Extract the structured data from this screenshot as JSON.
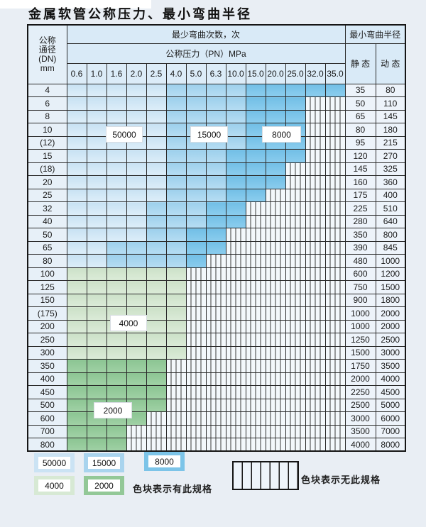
{
  "title": "金属软管公称压力、最小弯曲半径",
  "table": {
    "header": {
      "dn_label_lines": [
        "公称",
        "通径",
        "(DN)",
        "mm"
      ],
      "cycles_label": "最少弯曲次数，次",
      "pressure_label": "公称压力（PN）MPa",
      "pn_values": [
        "0.6",
        "1.0",
        "1.6",
        "2.0",
        "2.5",
        "4.0",
        "5.0",
        "6.3",
        "10.0",
        "15.0",
        "20.0",
        "25.0",
        "32.0",
        "35.0"
      ],
      "radius_label": "最小弯曲半径",
      "static_label": "静 态",
      "dynamic_label": "动 态"
    },
    "cell_legend": {
      "L": "blue zone 50000 cycles",
      "M": "blue zone 15000 cycles",
      "D": "blue zone 8000 cycles",
      "G": "green zone 4000 cycles",
      "E": "green zone 2000 cycles",
      "X": "hatched - no such specification"
    },
    "rows": [
      {
        "dn": "4",
        "cells": "LLLLLMMMMDDDDD",
        "static": "35",
        "dynamic": "80"
      },
      {
        "dn": "6",
        "cells": "LLLLLMMMMDDDXX",
        "static": "50",
        "dynamic": "110"
      },
      {
        "dn": "8",
        "cells": "LLLLLMMMMDDDXX",
        "static": "65",
        "dynamic": "145"
      },
      {
        "dn": "10",
        "cells": "LLLLLMMMMDDDXX",
        "static": "80",
        "dynamic": "180"
      },
      {
        "dn": "(12)",
        "cells": "LLLLLMMMMDDDXX",
        "static": "95",
        "dynamic": "215"
      },
      {
        "dn": "15",
        "cells": "LLLLLMMMDDDDXX",
        "static": "120",
        "dynamic": "270"
      },
      {
        "dn": "(18)",
        "cells": "LLLLLMMMDDDXXX",
        "static": "145",
        "dynamic": "325"
      },
      {
        "dn": "20",
        "cells": "LLLLLMMMDDDXXX",
        "static": "160",
        "dynamic": "360"
      },
      {
        "dn": "25",
        "cells": "LLLLLMMMDDXXXX",
        "static": "175",
        "dynamic": "400"
      },
      {
        "dn": "32",
        "cells": "LLLLMMMDDXXXXX",
        "static": "225",
        "dynamic": "510"
      },
      {
        "dn": "40",
        "cells": "LLLLMMMDDXXXXX",
        "static": "280",
        "dynamic": "640"
      },
      {
        "dn": "50",
        "cells": "LLLLMMDDXXXXXX",
        "static": "350",
        "dynamic": "800"
      },
      {
        "dn": "65",
        "cells": "LLMMMMDDXXXXXX",
        "static": "390",
        "dynamic": "845"
      },
      {
        "dn": "80",
        "cells": "LLMMMMDXXXXXXX",
        "static": "480",
        "dynamic": "1000"
      },
      {
        "dn": "100",
        "cells": "GGGGGGXXXXXXXX",
        "static": "600",
        "dynamic": "1200"
      },
      {
        "dn": "125",
        "cells": "GGGGGGXXXXXXXX",
        "static": "750",
        "dynamic": "1500"
      },
      {
        "dn": "150",
        "cells": "GGGGGGXXXXXXXX",
        "static": "900",
        "dynamic": "1800"
      },
      {
        "dn": "(175)",
        "cells": "GGGGGGXXXXXXXX",
        "static": "1000",
        "dynamic": "2000"
      },
      {
        "dn": "200",
        "cells": "GGGGGGXXXXXXXX",
        "static": "1000",
        "dynamic": "2000"
      },
      {
        "dn": "250",
        "cells": "GGGGGGXXXXXXXX",
        "static": "1250",
        "dynamic": "2500"
      },
      {
        "dn": "300",
        "cells": "GGGGGGXXXXXXXX",
        "static": "1500",
        "dynamic": "3000"
      },
      {
        "dn": "350",
        "cells": "EEEEEXXXXXXXXX",
        "static": "1750",
        "dynamic": "3500"
      },
      {
        "dn": "400",
        "cells": "EEEEEXXXXXXXXX",
        "static": "2000",
        "dynamic": "4000"
      },
      {
        "dn": "450",
        "cells": "EEEEEXXXXXXXXX",
        "static": "2250",
        "dynamic": "4500"
      },
      {
        "dn": "500",
        "cells": "EEEEEXXXXXXXXX",
        "static": "2500",
        "dynamic": "5000"
      },
      {
        "dn": "600",
        "cells": "EEEEXXXXXXXXXX",
        "static": "3000",
        "dynamic": "6000"
      },
      {
        "dn": "700",
        "cells": "EEEXXXXXXXXXXX",
        "static": "3500",
        "dynamic": "7000"
      },
      {
        "dn": "800",
        "cells": "EEEXXXXXXXXXXX",
        "static": "4000",
        "dynamic": "8000"
      }
    ]
  },
  "overlays": {
    "b50000": "50000",
    "b15000": "15000",
    "b8000": "8000",
    "b4000": "4000",
    "b2000": "2000"
  },
  "legend": {
    "items": [
      {
        "label": "50000",
        "color": "#cbe3f4"
      },
      {
        "label": "15000",
        "color": "#a9d4ee"
      },
      {
        "label": "8000",
        "color": "#7cc4e8"
      },
      {
        "label": "4000",
        "color": "#d7e9d4"
      },
      {
        "label": "2000",
        "color": "#93c897"
      }
    ],
    "has_spec_text": "色块表示有此规格",
    "no_spec_text": "色块表示无此规格"
  }
}
